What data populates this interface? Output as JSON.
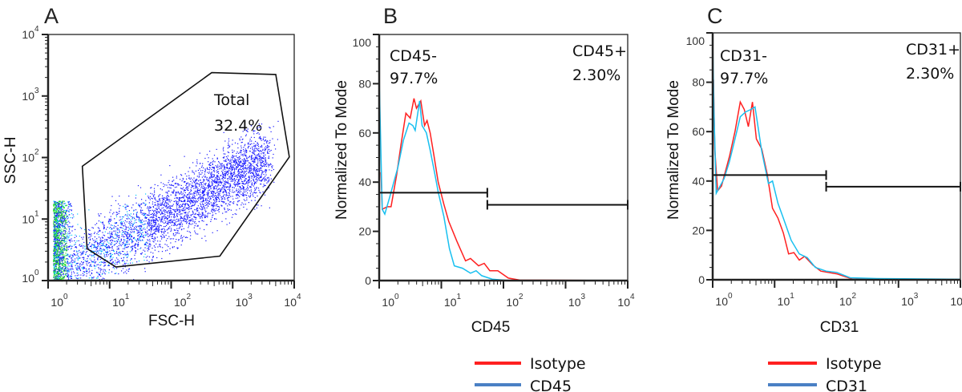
{
  "chart_data": [
    {
      "panel": "A",
      "type": "scatter",
      "xlabel": "FSC-H",
      "ylabel": "SSC-H",
      "xscale": "log",
      "yscale": "log",
      "xlim": [
        1,
        10000
      ],
      "ylim": [
        1,
        10000
      ],
      "xticks": [
        {
          "base": "10",
          "exp": "0"
        },
        {
          "base": "10",
          "exp": "1"
        },
        {
          "base": "10",
          "exp": "2"
        },
        {
          "base": "10",
          "exp": "3"
        },
        {
          "base": "10",
          "exp": "4"
        }
      ],
      "yticks": [
        {
          "base": "10",
          "exp": "0"
        },
        {
          "base": "10",
          "exp": "1"
        },
        {
          "base": "10",
          "exp": "2"
        },
        {
          "base": "10",
          "exp": "3"
        },
        {
          "base": "10",
          "exp": "4"
        }
      ],
      "point_colors": [
        "#1a1aff",
        "#00c8ff",
        "#22dd22"
      ],
      "gate": {
        "label_line1": "Total",
        "label_line2": "32.4%",
        "polygon": [
          [
            3.6,
            72
          ],
          [
            4.3,
            3.3
          ],
          [
            12.6,
            1.66
          ],
          [
            617,
            2.5
          ],
          [
            8318,
            102
          ],
          [
            5012,
            2239
          ],
          [
            457,
            2399
          ]
        ]
      }
    },
    {
      "panel": "B",
      "type": "line",
      "xlabel": "CD45",
      "ylabel": "Normalized To Mode",
      "xscale": "log",
      "xlim": [
        1,
        10000
      ],
      "ylim": [
        0,
        100
      ],
      "xticks": [
        {
          "base": "10",
          "exp": "0"
        },
        {
          "base": "10",
          "exp": "1"
        },
        {
          "base": "10",
          "exp": "2"
        },
        {
          "base": "10",
          "exp": "3"
        },
        {
          "base": "10",
          "exp": "4"
        }
      ],
      "yticks": [
        "0",
        "20",
        "40",
        "60",
        "80",
        "100"
      ],
      "series": [
        {
          "name": "Isotype",
          "color": "#ff2020",
          "points": [
            [
              1.07,
              44
            ],
            [
              1.12,
              29
            ],
            [
              1.35,
              30
            ],
            [
              1.55,
              30
            ],
            [
              1.91,
              43
            ],
            [
              2.24,
              55
            ],
            [
              2.69,
              68
            ],
            [
              3.16,
              66
            ],
            [
              3.63,
              74
            ],
            [
              3.98,
              70
            ],
            [
              4.68,
              73
            ],
            [
              5.37,
              63
            ],
            [
              5.89,
              65
            ],
            [
              6.61,
              60
            ],
            [
              7.59,
              51
            ],
            [
              8.91,
              40
            ],
            [
              11,
              31
            ],
            [
              13.2,
              24
            ],
            [
              17.8,
              16
            ],
            [
              24.5,
              8
            ],
            [
              29.5,
              9
            ],
            [
              39.8,
              6
            ],
            [
              49,
              7
            ],
            [
              60.3,
              4
            ],
            [
              81.3,
              4
            ],
            [
              120,
              1
            ],
            [
              182,
              0.2
            ],
            [
              10000,
              0
            ]
          ]
        },
        {
          "name": "CD45",
          "color": "#18c0f0",
          "points": [
            [
              1,
              96
            ],
            [
              1.01,
              78
            ],
            [
              1.12,
              29
            ],
            [
              1.23,
              27
            ],
            [
              1.48,
              34
            ],
            [
              2,
              46
            ],
            [
              2.45,
              57
            ],
            [
              3.02,
              64
            ],
            [
              3.47,
              63
            ],
            [
              3.8,
              61
            ],
            [
              4.47,
              73
            ],
            [
              4.9,
              63
            ],
            [
              5.75,
              60
            ],
            [
              6.61,
              53
            ],
            [
              7.76,
              44
            ],
            [
              8.91,
              36
            ],
            [
              11,
              26
            ],
            [
              13.5,
              13
            ],
            [
              16.2,
              6
            ],
            [
              21.9,
              5
            ],
            [
              29.5,
              3
            ],
            [
              36.3,
              4
            ],
            [
              44.7,
              2
            ],
            [
              66,
              0.6
            ],
            [
              120,
              0
            ],
            [
              10000,
              0
            ]
          ]
        }
      ],
      "gates": [
        {
          "label_line1": "CD45-",
          "label_line2": "97.7%",
          "from": 1,
          "to": 55,
          "y": 35.7
        },
        {
          "label_line1": "CD45+",
          "label_line2": "2.30%",
          "from": 55,
          "to": 10000,
          "y": 30.8
        }
      ],
      "legend": [
        {
          "label": "Isotype",
          "color": "#ff2020"
        },
        {
          "label": "CD45",
          "color": "#4a80c4"
        }
      ],
      "legend_placement": "bottom"
    },
    {
      "panel": "C",
      "type": "line",
      "xlabel": "CD31",
      "ylabel": "Normalized To Mode",
      "xscale": "log",
      "xlim": [
        1,
        10000
      ],
      "ylim": [
        0,
        100
      ],
      "xticks": [
        {
          "base": "10",
          "exp": "0"
        },
        {
          "base": "10",
          "exp": "1"
        },
        {
          "base": "10",
          "exp": "2"
        },
        {
          "base": "10",
          "exp": "3"
        },
        {
          "base": "10",
          "exp": "4"
        }
      ],
      "yticks": [
        "0",
        "20",
        "40",
        "60",
        "80",
        "100"
      ],
      "series": [
        {
          "name": "Isotype",
          "color": "#ff2020",
          "points": [
            [
              1.03,
              81
            ],
            [
              1.08,
              53
            ],
            [
              1.2,
              36
            ],
            [
              1.39,
              38
            ],
            [
              1.61,
              44
            ],
            [
              1.87,
              50
            ],
            [
              2.29,
              60
            ],
            [
              2.79,
              72
            ],
            [
              3.24,
              69
            ],
            [
              3.77,
              62
            ],
            [
              4.38,
              72
            ],
            [
              5.08,
              57
            ],
            [
              6.19,
              53
            ],
            [
              7.57,
              43
            ],
            [
              9.23,
              29
            ],
            [
              11.3,
              25
            ],
            [
              13.8,
              19
            ],
            [
              16.8,
              10.5
            ],
            [
              20.5,
              11
            ],
            [
              25,
              8
            ],
            [
              30.5,
              9.5
            ],
            [
              41.2,
              6
            ],
            [
              55.6,
              3.5
            ],
            [
              101,
              2.4
            ],
            [
              184,
              0.2
            ],
            [
              10000,
              0
            ]
          ]
        },
        {
          "name": "CD31",
          "color": "#18c0f0",
          "points": [
            [
              1,
              97
            ],
            [
              1.05,
              68
            ],
            [
              1.14,
              35
            ],
            [
              1.32,
              38
            ],
            [
              1.53,
              41
            ],
            [
              1.87,
              48
            ],
            [
              2.29,
              57
            ],
            [
              2.79,
              66
            ],
            [
              3.4,
              68
            ],
            [
              4.16,
              69
            ],
            [
              4.83,
              70
            ],
            [
              6.19,
              52
            ],
            [
              7.94,
              39
            ],
            [
              9.23,
              40
            ],
            [
              11.3,
              31
            ],
            [
              13.8,
              25
            ],
            [
              18.5,
              16
            ],
            [
              25,
              10.5
            ],
            [
              33.7,
              9
            ],
            [
              45.5,
              5
            ],
            [
              67.8,
              3.5
            ],
            [
              101,
              3
            ],
            [
              166,
              0.8
            ],
            [
              451,
              0.5
            ],
            [
              10000,
              0.2
            ]
          ]
        }
      ],
      "gates": [
        {
          "label_line1": "CD31-",
          "label_line2": "97.7%",
          "from": 1,
          "to": 68,
          "y": 42.4
        },
        {
          "label_line1": "CD31+",
          "label_line2": "2.30%",
          "from": 68,
          "to": 10000,
          "y": 37.7
        }
      ],
      "legend": [
        {
          "label": "Isotype",
          "color": "#ff2020"
        },
        {
          "label": "CD31",
          "color": "#4a80c4"
        }
      ],
      "legend_placement": "bottom"
    }
  ]
}
